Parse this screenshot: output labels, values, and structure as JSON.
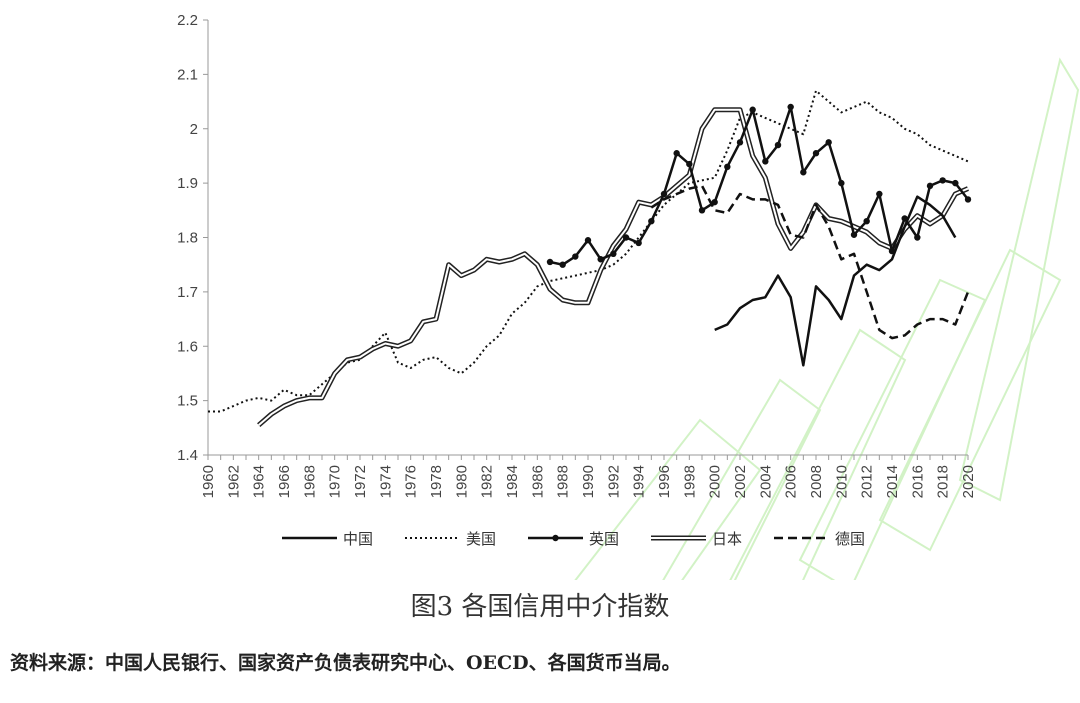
{
  "figure": {
    "title": "图3 各国信用中介指数",
    "source": "资料来源：中国人民银行、国家资产负债表研究中心、OECD、各国货币当局。"
  },
  "chart_data": {
    "type": "line",
    "title": "",
    "xlabel": "",
    "ylabel": "",
    "xlim": [
      1960,
      2020
    ],
    "ylim": [
      1.4,
      2.2
    ],
    "y_ticks": [
      "1.4",
      "1.5",
      "1.6",
      "1.7",
      "1.8",
      "1.9",
      "2",
      "2.1",
      "2.2"
    ],
    "x_ticks": [
      "1960",
      "1962",
      "1964",
      "1966",
      "1968",
      "1970",
      "1972",
      "1974",
      "1976",
      "1978",
      "1980",
      "1982",
      "1984",
      "1986",
      "1988",
      "1990",
      "1992",
      "1994",
      "1996",
      "1998",
      "2000",
      "2002",
      "2004",
      "2006",
      "2008",
      "2010",
      "2012",
      "2014",
      "2016",
      "2018",
      "2020"
    ],
    "legend_position": "bottom",
    "series": [
      {
        "name": "中国",
        "style": "solid",
        "x": [
          2000,
          2001,
          2002,
          2003,
          2004,
          2005,
          2006,
          2007,
          2008,
          2009,
          2010,
          2011,
          2012,
          2013,
          2014,
          2015,
          2016,
          2017,
          2018,
          2019
        ],
        "values": [
          1.63,
          1.64,
          1.67,
          1.685,
          1.69,
          1.73,
          1.69,
          1.565,
          1.71,
          1.685,
          1.65,
          1.73,
          1.75,
          1.74,
          1.76,
          1.82,
          1.875,
          1.86,
          1.84,
          1.8
        ]
      },
      {
        "name": "美国",
        "style": "dotted",
        "x": [
          1960,
          1961,
          1962,
          1963,
          1964,
          1965,
          1966,
          1967,
          1968,
          1969,
          1970,
          1971,
          1972,
          1973,
          1974,
          1975,
          1976,
          1977,
          1978,
          1979,
          1980,
          1981,
          1982,
          1983,
          1984,
          1985,
          1986,
          1987,
          1988,
          1989,
          1990,
          1991,
          1992,
          1993,
          1994,
          1995,
          1996,
          1997,
          1998,
          1999,
          2000,
          2001,
          2002,
          2003,
          2004,
          2005,
          2006,
          2007,
          2008,
          2009,
          2010,
          2011,
          2012,
          2013,
          2014,
          2015,
          2016,
          2017,
          2018,
          2019,
          2020
        ],
        "values": [
          1.48,
          1.48,
          1.49,
          1.5,
          1.505,
          1.5,
          1.52,
          1.51,
          1.51,
          1.53,
          1.55,
          1.57,
          1.575,
          1.6,
          1.625,
          1.57,
          1.56,
          1.575,
          1.58,
          1.56,
          1.55,
          1.57,
          1.6,
          1.62,
          1.66,
          1.68,
          1.71,
          1.72,
          1.725,
          1.73,
          1.735,
          1.74,
          1.75,
          1.77,
          1.8,
          1.83,
          1.86,
          1.88,
          1.9,
          1.905,
          1.91,
          1.96,
          2.02,
          2.03,
          2.02,
          2.01,
          2.0,
          1.99,
          2.07,
          2.05,
          2.03,
          2.04,
          2.05,
          2.03,
          2.02,
          2.0,
          1.99,
          1.97,
          1.96,
          1.95,
          1.94
        ]
      },
      {
        "name": "英国",
        "style": "solid-marker",
        "x": [
          1987,
          1988,
          1989,
          1990,
          1991,
          1992,
          1993,
          1994,
          1995,
          1996,
          1997,
          1998,
          1999,
          2000,
          2001,
          2002,
          2003,
          2004,
          2005,
          2006,
          2007,
          2008,
          2009,
          2010,
          2011,
          2012,
          2013,
          2014,
          2015,
          2016,
          2017,
          2018,
          2019,
          2020
        ],
        "values": [
          1.755,
          1.75,
          1.765,
          1.795,
          1.76,
          1.77,
          1.8,
          1.79,
          1.83,
          1.88,
          1.955,
          1.935,
          1.85,
          1.865,
          1.93,
          1.975,
          2.035,
          1.94,
          1.97,
          2.04,
          1.92,
          1.955,
          1.975,
          1.9,
          1.805,
          1.83,
          1.88,
          1.775,
          1.835,
          1.8,
          1.895,
          1.905,
          1.9,
          1.87
        ]
      },
      {
        "name": "日本",
        "style": "double",
        "x": [
          1964,
          1965,
          1966,
          1967,
          1968,
          1969,
          1970,
          1971,
          1972,
          1973,
          1974,
          1975,
          1976,
          1977,
          1978,
          1979,
          1980,
          1981,
          1982,
          1983,
          1984,
          1985,
          1986,
          1987,
          1988,
          1989,
          1990,
          1991,
          1992,
          1993,
          1994,
          1995,
          1996,
          1997,
          1998,
          1999,
          2000,
          2001,
          2002,
          2003,
          2004,
          2005,
          2006,
          2007,
          2008,
          2009,
          2010,
          2011,
          2012,
          2013,
          2014,
          2015,
          2016,
          2017,
          2018,
          2019,
          2020
        ],
        "values": [
          1.455,
          1.475,
          1.49,
          1.5,
          1.505,
          1.505,
          1.55,
          1.575,
          1.58,
          1.595,
          1.605,
          1.6,
          1.61,
          1.645,
          1.65,
          1.75,
          1.73,
          1.74,
          1.76,
          1.755,
          1.76,
          1.77,
          1.75,
          1.705,
          1.685,
          1.68,
          1.68,
          1.74,
          1.785,
          1.815,
          1.865,
          1.86,
          1.875,
          1.895,
          1.915,
          2.0,
          2.035,
          2.035,
          2.035,
          1.95,
          1.91,
          1.825,
          1.78,
          1.81,
          1.86,
          1.835,
          1.83,
          1.82,
          1.81,
          1.79,
          1.78,
          1.815,
          1.84,
          1.825,
          1.84,
          1.88,
          1.89
        ]
      },
      {
        "name": "德国",
        "style": "dashed",
        "x": [
          1995,
          1996,
          1997,
          1998,
          1999,
          2000,
          2001,
          2002,
          2003,
          2004,
          2005,
          2006,
          2007,
          2008,
          2009,
          2010,
          2011,
          2012,
          2013,
          2014,
          2015,
          2016,
          2017,
          2018,
          2019,
          2020
        ],
        "values": [
          1.855,
          1.87,
          1.88,
          1.89,
          1.895,
          1.85,
          1.845,
          1.88,
          1.87,
          1.87,
          1.86,
          1.805,
          1.8,
          1.86,
          1.82,
          1.76,
          1.77,
          1.7,
          1.63,
          1.615,
          1.62,
          1.64,
          1.65,
          1.65,
          1.64,
          1.7
        ]
      }
    ]
  }
}
